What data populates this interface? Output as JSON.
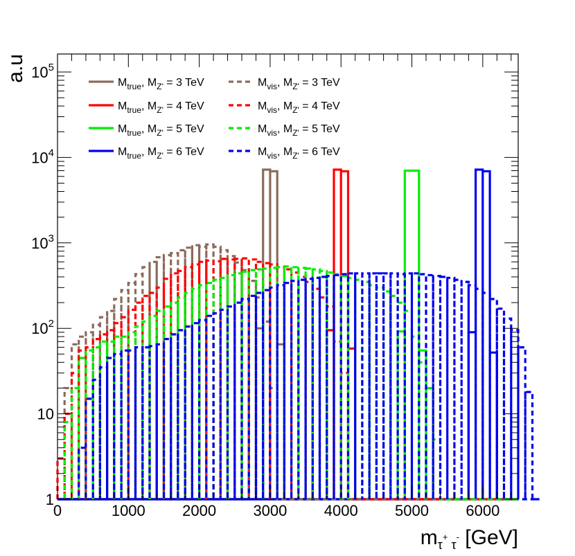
{
  "chart_data": {
    "type": "line",
    "title": "",
    "xlabel": {
      "base": "m",
      "sub1": "τ",
      "sup1": "+",
      "sub2": "τ",
      "sup2": "-",
      "unit": "[GeV]"
    },
    "ylabel": "a.u",
    "xlim": [
      0,
      6500
    ],
    "ylim": [
      1,
      200000
    ],
    "yscale": "log",
    "bin_width": 100,
    "x_ticks": [
      0,
      1000,
      2000,
      3000,
      4000,
      5000,
      6000
    ],
    "x_tick_labels": [
      "0",
      "1000",
      "2000",
      "3000",
      "4000",
      "5000",
      "6000"
    ],
    "y_ticks": [
      {
        "value": 1,
        "label": "1",
        "exp": ""
      },
      {
        "value": 10,
        "label": "10",
        "exp": ""
      },
      {
        "value": 100,
        "label": "10",
        "exp": "2"
      },
      {
        "value": 1000,
        "label": "10",
        "exp": "3"
      },
      {
        "value": 10000,
        "label": "10",
        "exp": "4"
      },
      {
        "value": 100000,
        "label": "10",
        "exp": "5"
      }
    ],
    "legend_position": "top-left",
    "series": [
      {
        "name": "true_3TeV",
        "kind": "true",
        "color": "#8b6b5c",
        "legend": {
          "base": "M",
          "sub": "true",
          "mid": ", M",
          "sub2": "Z'",
          "tail": " = 3 TeV"
        },
        "bins": [
          [
            2800,
            2900,
            100
          ],
          [
            2900,
            3000,
            7200
          ],
          [
            3000,
            3100,
            6900
          ],
          [
            3100,
            3200,
            65
          ]
        ]
      },
      {
        "name": "true_4TeV",
        "kind": "true",
        "color": "#ff0000",
        "legend": {
          "base": "M",
          "sub": "true",
          "mid": ", M",
          "sub2": "Z'",
          "tail": " = 4 TeV"
        },
        "bins": [
          [
            3800,
            3900,
            95
          ],
          [
            3900,
            4000,
            7200
          ],
          [
            4000,
            4100,
            6900
          ],
          [
            4100,
            4200,
            58
          ]
        ]
      },
      {
        "name": "true_5TeV",
        "kind": "true",
        "color": "#00ee00",
        "legend": {
          "base": "M",
          "sub": "true",
          "mid": ", M",
          "sub2": "Z'",
          "tail": " = 5 TeV"
        },
        "bins": [
          [
            4800,
            4900,
            92
          ],
          [
            4900,
            5100,
            7000
          ],
          [
            5100,
            5200,
            55
          ]
        ]
      },
      {
        "name": "true_6TeV",
        "kind": "true",
        "color": "#0000ee",
        "legend": {
          "base": "M",
          "sub": "true",
          "mid": ", M",
          "sub2": "Z'",
          "tail": " = 6 TeV"
        },
        "bins": [
          [
            5800,
            5900,
            90
          ],
          [
            5900,
            6000,
            7200
          ],
          [
            6000,
            6100,
            6900
          ],
          [
            6100,
            6200,
            52
          ]
        ]
      },
      {
        "name": "vis_3TeV",
        "kind": "vis",
        "color": "#8b6b5c",
        "legend": {
          "base": "M",
          "sub": "vis",
          "mid": ", M",
          "sub2": "Z'",
          "tail": " = 3 TeV"
        },
        "x_start": 0,
        "values": [
          3,
          20,
          65,
          80,
          90,
          110,
          135,
          160,
          220,
          280,
          340,
          430,
          520,
          600,
          680,
          720,
          760,
          820,
          880,
          940,
          900,
          960,
          900,
          820,
          700,
          590,
          480,
          360,
          230,
          120,
          20,
          1
        ]
      },
      {
        "name": "vis_4TeV",
        "kind": "vis",
        "color": "#ff0000",
        "legend": {
          "base": "M",
          "sub": "vis",
          "mid": ", M",
          "sub2": "Z'",
          "tail": " = 4 TeV"
        },
        "x_start": 0,
        "values": [
          3,
          10,
          30,
          55,
          60,
          75,
          85,
          95,
          115,
          135,
          165,
          200,
          240,
          260,
          300,
          380,
          440,
          470,
          520,
          560,
          600,
          620,
          610,
          650,
          640,
          650,
          660,
          640,
          600,
          580,
          560,
          520,
          490,
          450,
          400,
          350,
          290,
          230,
          180,
          70,
          30,
          1
        ]
      },
      {
        "name": "vis_5TeV",
        "kind": "vis",
        "color": "#00ee00",
        "legend": {
          "base": "M",
          "sub": "vis",
          "mid": ", M",
          "sub2": "Z'",
          "tail": " = 5 TeV"
        },
        "x_start": 100,
        "values": [
          8,
          20,
          45,
          55,
          60,
          70,
          70,
          80,
          80,
          90,
          105,
          120,
          140,
          160,
          180,
          200,
          230,
          260,
          290,
          320,
          340,
          370,
          390,
          420,
          440,
          460,
          480,
          490,
          500,
          510,
          520,
          530,
          520,
          510,
          500,
          490,
          470,
          450,
          430,
          410,
          390,
          370,
          350,
          320,
          300,
          270,
          240,
          200,
          160,
          80,
          40,
          20,
          5,
          1
        ]
      },
      {
        "name": "vis_6TeV",
        "kind": "vis",
        "color": "#0000ee",
        "legend": {
          "base": "M",
          "sub": "vis",
          "mid": ", M",
          "sub2": "Z'",
          "tail": " = 6 TeV"
        },
        "x_start": 200,
        "values": [
          1,
          4,
          15,
          25,
          35,
          45,
          50,
          55,
          55,
          60,
          60,
          62,
          65,
          75,
          85,
          95,
          105,
          115,
          125,
          140,
          150,
          165,
          180,
          200,
          220,
          240,
          260,
          280,
          300,
          320,
          340,
          360,
          370,
          380,
          390,
          400,
          410,
          420,
          430,
          440,
          440,
          440,
          440,
          440,
          440,
          440,
          430,
          440,
          440,
          430,
          420,
          410,
          400,
          390,
          370,
          350,
          320,
          290,
          260,
          220,
          170,
          130,
          95,
          60,
          18,
          1
        ]
      }
    ]
  }
}
